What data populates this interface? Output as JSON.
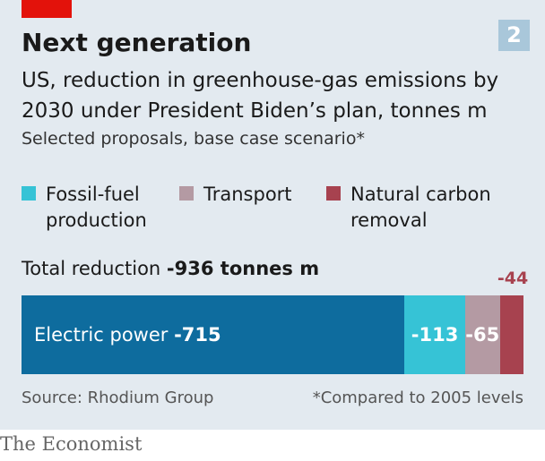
{
  "header": {
    "title": "Next generation",
    "chart_number": "2",
    "subtitle": "US, reduction in greenhouse-gas emissions by 2030 under President Biden’s plan, tonnes m",
    "note": "Selected proposals, base case scenario*"
  },
  "legend": [
    {
      "line1": "Fossil-fuel",
      "line2": "production",
      "color": "#36c3d6"
    },
    {
      "line1": "Transport",
      "line2": "",
      "color": "#b49aa3"
    },
    {
      "line1": "Natural carbon",
      "line2": "removal",
      "color": "#a7424f"
    }
  ],
  "total": {
    "label": "Total reduction",
    "value": "-936 tonnes m"
  },
  "footer": {
    "source": "Source: Rhodium Group",
    "footnote": "*Compared to 2005 levels"
  },
  "brand": "The Economist",
  "chart_data": {
    "type": "bar",
    "orientation": "horizontal-stacked",
    "total": -936,
    "series": [
      {
        "name": "Electric power",
        "value": -715,
        "label": "-715",
        "color": "#0e6c9e"
      },
      {
        "name": "Fossil-fuel production",
        "value": -113,
        "label": "-113",
        "color": "#36c3d6"
      },
      {
        "name": "Transport",
        "value": -65,
        "label": "-65",
        "color": "#b49aa3"
      },
      {
        "name": "Natural carbon removal",
        "value": -44,
        "label": "-44",
        "color": "#a7424f"
      }
    ]
  }
}
